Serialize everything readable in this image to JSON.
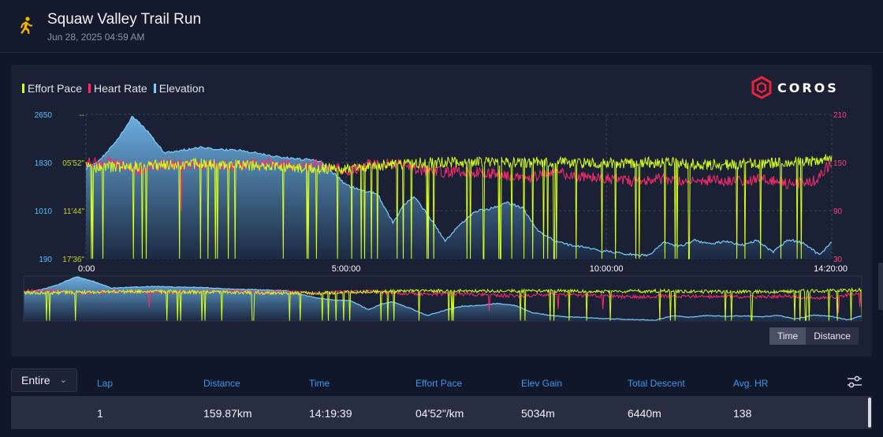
{
  "activity": {
    "title": "Squaw Valley Trail Run",
    "date": "Jun 28, 2025 04:59 AM",
    "icon": "runner-icon"
  },
  "legend": [
    {
      "label": "Effort Pace",
      "color": "#d4ff1a"
    },
    {
      "label": "Heart Rate",
      "color": "#ff2a6d"
    },
    {
      "label": "Elevation",
      "color": "#7ecbff"
    }
  ],
  "brand": {
    "name": "COROS",
    "color": "#e8213f"
  },
  "chart_data": {
    "type": "area",
    "x_axis": {
      "labels": [
        "0:00",
        "5:00:00",
        "10:00:00",
        "14:20:00"
      ],
      "range_hours": [
        0,
        14.33
      ]
    },
    "y_elevation": {
      "labels": [
        "2650",
        "1830",
        "1010",
        "190"
      ],
      "range": [
        190,
        2650
      ],
      "unit": "m",
      "color": "#5bbcff"
    },
    "y_pace": {
      "labels": [
        "--",
        "05'52\"",
        "11'44\"",
        "17'36\""
      ],
      "color": "#b7d91a"
    },
    "y_heart_rate": {
      "labels": [
        "210",
        "150",
        "90",
        "30"
      ],
      "range": [
        30,
        210
      ],
      "color": "#ff3b7a"
    },
    "grid": true,
    "series": [
      {
        "name": "Elevation",
        "x": [
          0,
          0.3,
          0.6,
          0.9,
          1.2,
          1.5,
          1.8,
          2.2,
          2.6,
          3.0,
          3.5,
          4.0,
          4.5,
          5.0,
          5.3,
          5.6,
          5.9,
          6.1,
          6.3,
          6.6,
          6.9,
          7.2,
          7.5,
          7.8,
          8.1,
          8.4,
          8.7,
          9.0,
          9.3,
          9.6,
          9.9,
          10.2,
          10.5,
          10.8,
          11.1,
          11.4,
          11.7,
          12.0,
          12.3,
          12.6,
          12.9,
          13.2,
          13.5,
          13.8,
          14.1,
          14.33
        ],
        "values": [
          1720,
          1900,
          2200,
          2620,
          2350,
          2000,
          2030,
          2080,
          2050,
          2030,
          1950,
          1900,
          1850,
          1450,
          1350,
          1300,
          800,
          1100,
          1250,
          900,
          500,
          780,
          1000,
          1050,
          1150,
          1050,
          650,
          500,
          420,
          380,
          320,
          300,
          260,
          240,
          480,
          400,
          500,
          450,
          480,
          420,
          500,
          300,
          520,
          450,
          250,
          480
        ]
      },
      {
        "name": "Heart Rate",
        "x": [
          0,
          0.5,
          1.0,
          1.5,
          2.0,
          2.5,
          3.0,
          3.5,
          4.0,
          4.5,
          5.0,
          5.5,
          6.0,
          6.5,
          7.0,
          7.5,
          8.0,
          8.5,
          9.0,
          9.5,
          10.0,
          10.5,
          11.0,
          11.5,
          12.0,
          12.5,
          13.0,
          13.5,
          14.0,
          14.33
        ],
        "values": [
          150,
          150,
          140,
          148,
          148,
          145,
          147,
          150,
          145,
          148,
          140,
          148,
          148,
          140,
          138,
          138,
          135,
          130,
          138,
          132,
          130,
          126,
          130,
          128,
          128,
          126,
          130,
          122,
          128,
          150
        ]
      },
      {
        "name": "Effort Pace",
        "x": [
          0,
          1,
          2,
          3,
          4,
          5,
          6,
          7,
          8,
          9,
          10,
          11,
          12,
          13,
          14,
          14.33
        ],
        "values": [
          "06'30\"",
          "06'20\"",
          "06'00\"",
          "06'10\"",
          "06'30\"",
          "06'40\"",
          "06'00\"",
          "05'50\"",
          "05'50\"",
          "05'50\"",
          "06'00\"",
          "05'50\"",
          "06'10\"",
          "06'00\"",
          "05'40\"",
          "05'20\""
        ]
      }
    ]
  },
  "toggle": {
    "time_label": "Time",
    "distance_label": "Distance",
    "active": "Time"
  },
  "laps": {
    "selector_value": "Entire",
    "columns": [
      "Lap",
      "Distance",
      "Time",
      "Effort Pace",
      "Elev Gain",
      "Total Descent",
      "Avg. HR"
    ],
    "rows": [
      [
        "1",
        "159.87km",
        "14:19:39",
        "04'52\"/km",
        "5034m",
        "6440m",
        "138"
      ]
    ]
  }
}
